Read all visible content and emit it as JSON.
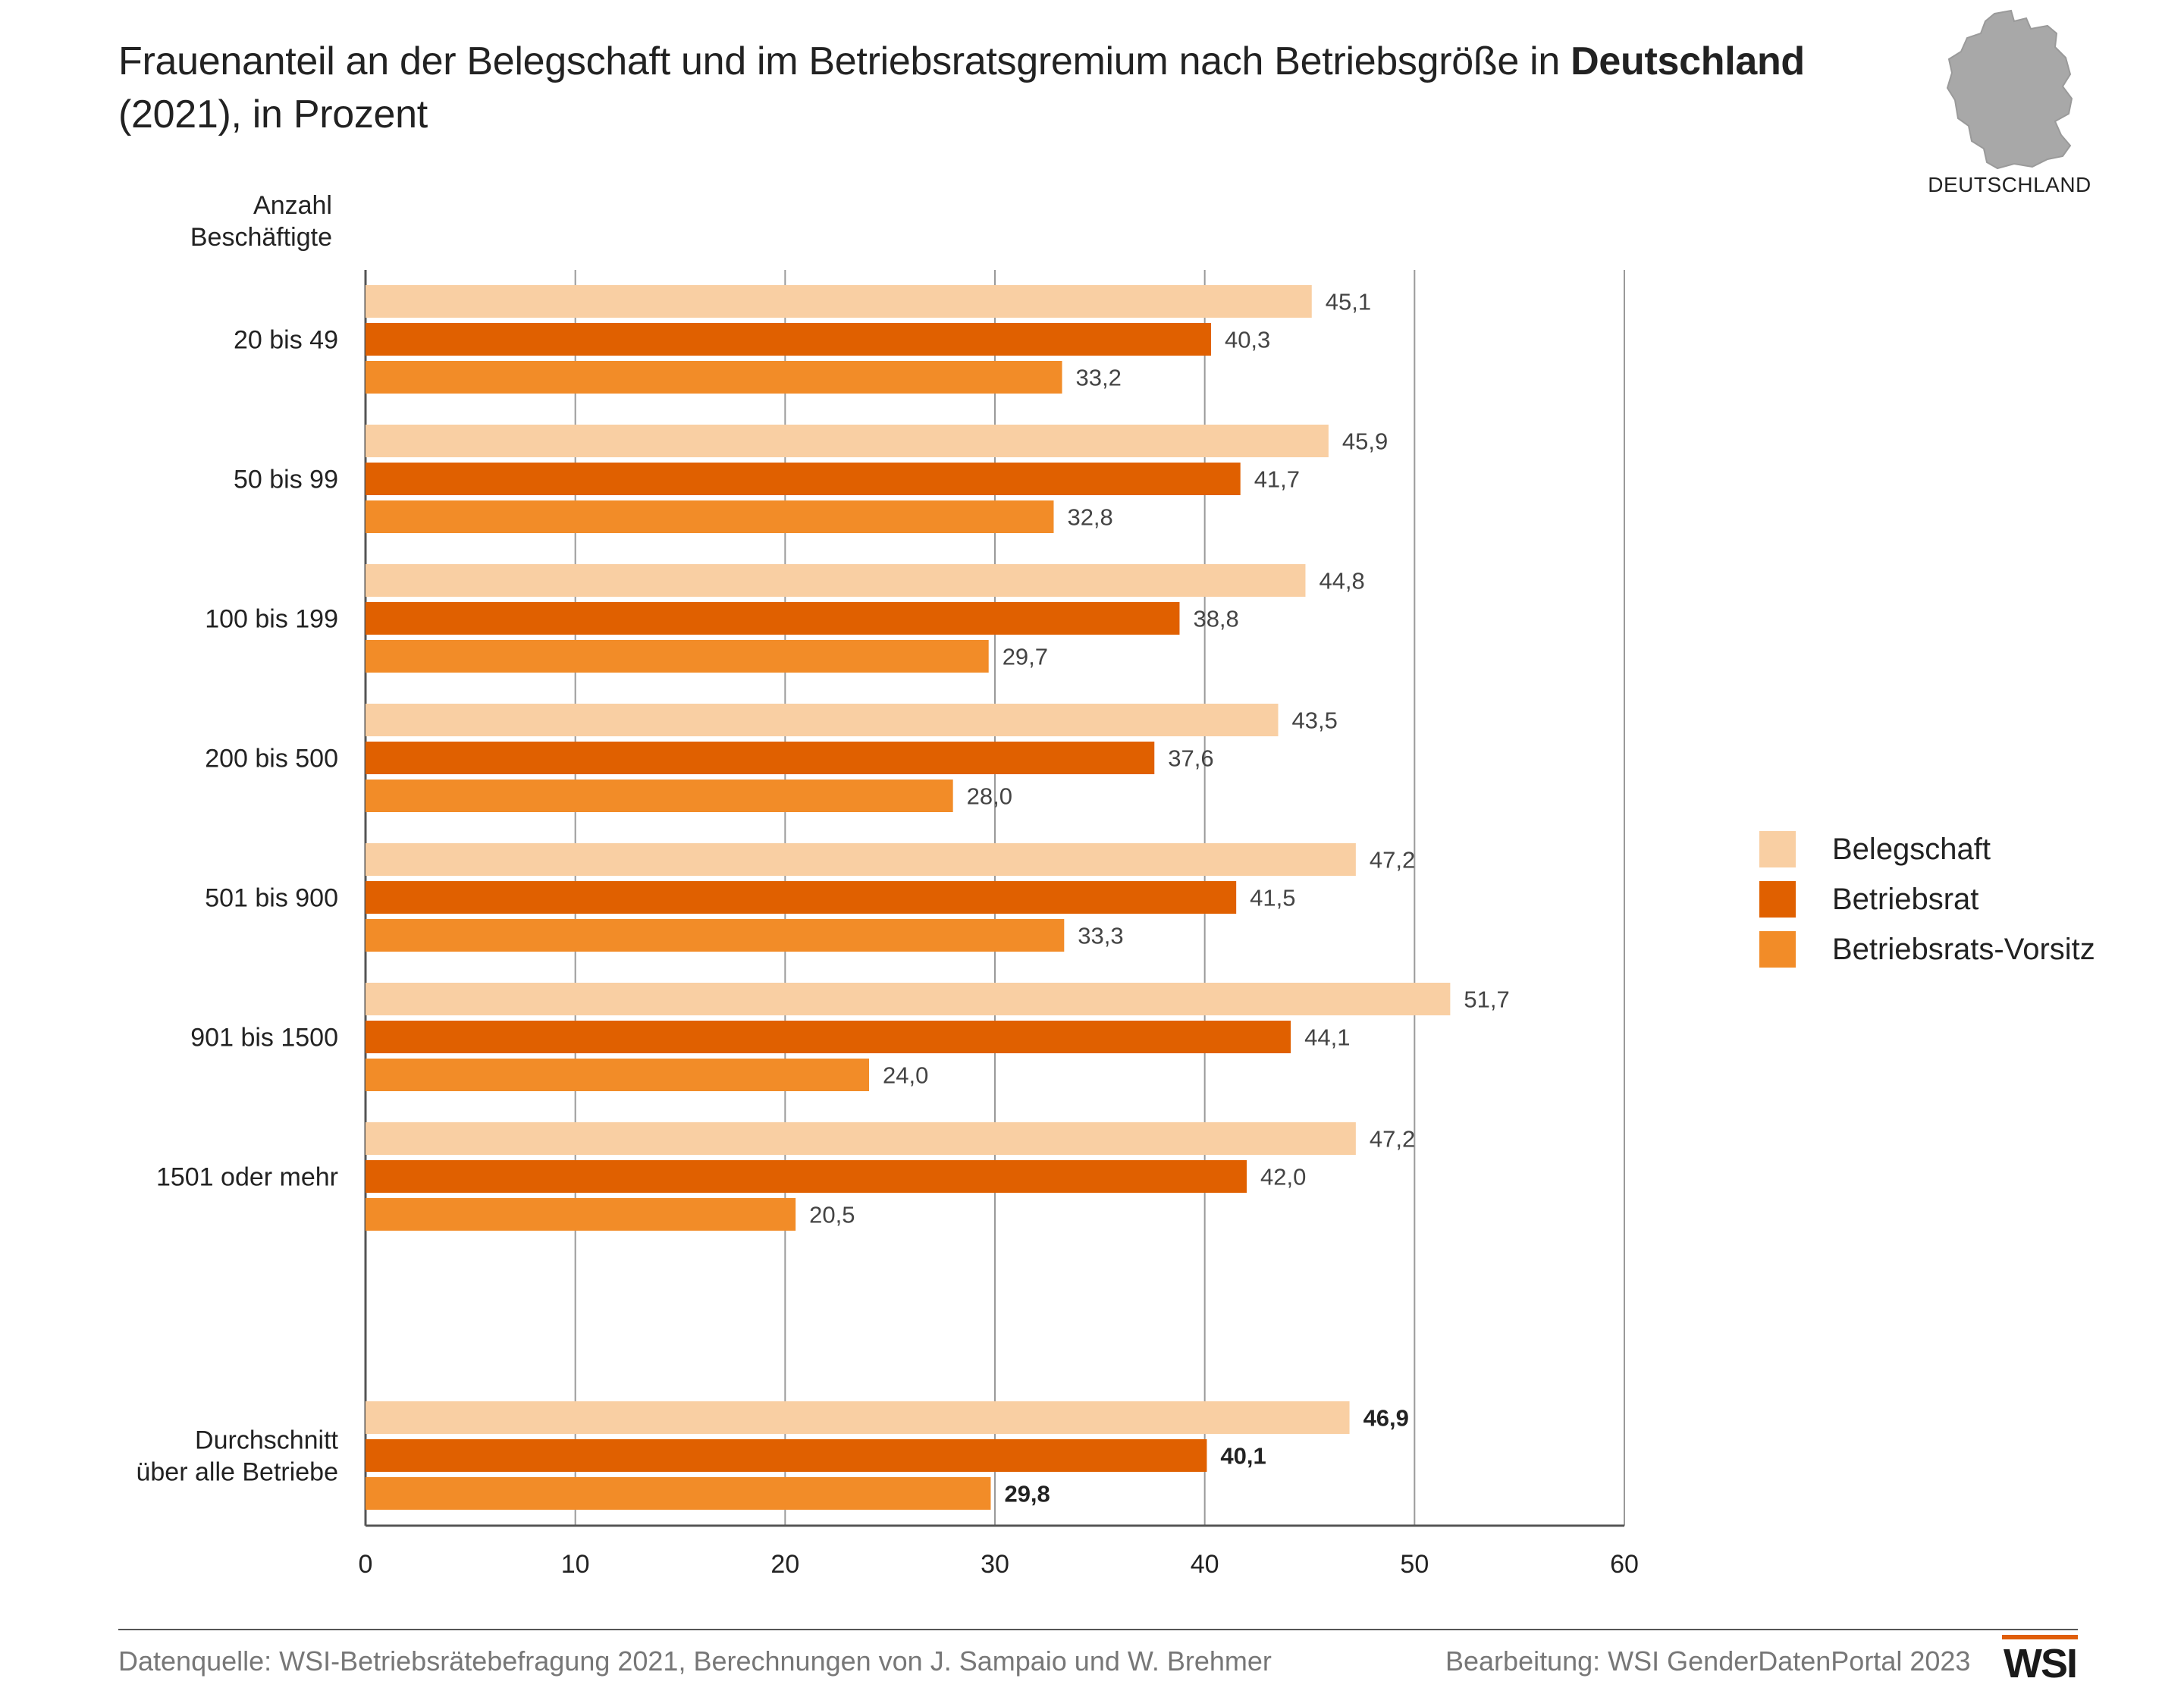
{
  "title": {
    "line1_prefix": "Frauenanteil an der Belegschaft und im Betriebsratsgremium nach Betriebsgröße in ",
    "line1_bold": "Deutschland",
    "line2": "(2021), in Prozent"
  },
  "map": {
    "icon": "germany-map-icon",
    "label": "DEUTSCHLAND"
  },
  "colors": {
    "belegschaft": "#f9cfa3",
    "betriebsrat": "#e06000",
    "vorsitz": "#f28c28",
    "grid": "#9a9a9a",
    "axis": "#555555"
  },
  "chart_data": {
    "type": "bar",
    "orientation": "horizontal",
    "title": "Frauenanteil an der Belegschaft und im Betriebsratsgremium nach Betriebsgröße in Deutschland (2021), in Prozent",
    "ylabel": "Anzahl Beschäftigte",
    "y_axis_title_lines": [
      "Anzahl",
      "Beschäftigte"
    ],
    "xlim": [
      0,
      60
    ],
    "xticks": [
      "0",
      "10",
      "20",
      "30",
      "40",
      "50",
      "60"
    ],
    "grid": true,
    "legend_position": "right",
    "categories": [
      {
        "lines": [
          "20 bis 49"
        ]
      },
      {
        "lines": [
          "50 bis 99"
        ]
      },
      {
        "lines": [
          "100 bis 199"
        ]
      },
      {
        "lines": [
          "200 bis 500"
        ]
      },
      {
        "lines": [
          "501 bis 900"
        ]
      },
      {
        "lines": [
          "901 bis 1500"
        ]
      },
      {
        "lines": [
          "1501 oder mehr"
        ]
      },
      {
        "lines": [
          "Durchschnitt",
          "über alle Betriebe"
        ]
      }
    ],
    "series": [
      {
        "name": "Belegschaft",
        "color_key": "belegschaft",
        "values": [
          45.1,
          45.9,
          44.8,
          43.5,
          47.2,
          51.7,
          47.2,
          46.9
        ],
        "labels": [
          "45,1",
          "45,9",
          "44,8",
          "43,5",
          "47,2",
          "51,7",
          "47,2",
          "46,9"
        ]
      },
      {
        "name": "Betriebsrat",
        "color_key": "betriebsrat",
        "values": [
          40.3,
          41.7,
          38.8,
          37.6,
          41.5,
          44.1,
          42.0,
          40.1
        ],
        "labels": [
          "40,3",
          "41,7",
          "38,8",
          "37,6",
          "41,5",
          "44,1",
          "42,0",
          "40,1"
        ]
      },
      {
        "name": "Betriebsrats-Vorsitz",
        "color_key": "vorsitz",
        "values": [
          33.2,
          32.8,
          29.7,
          28.0,
          33.3,
          24.0,
          20.5,
          29.8
        ],
        "labels": [
          "33,2",
          "32,8",
          "29,7",
          "28,0",
          "33,3",
          "24,0",
          "20,5",
          "29,8"
        ]
      }
    ],
    "bold_label_category_index": 7
  },
  "legend": [
    {
      "label": "Belegschaft",
      "color_key": "belegschaft"
    },
    {
      "label": "Betriebsrat",
      "color_key": "betriebsrat"
    },
    {
      "label": "Betriebsrats-Vorsitz",
      "color_key": "vorsitz"
    }
  ],
  "footer": {
    "source": "Datenquelle: WSI-Betriebsrätebefragung 2021, Berechnungen von J. Sampaio und W. Brehmer",
    "edit": "Bearbeitung: WSI GenderDatenPortal 2023",
    "logo_text": "WSI"
  }
}
